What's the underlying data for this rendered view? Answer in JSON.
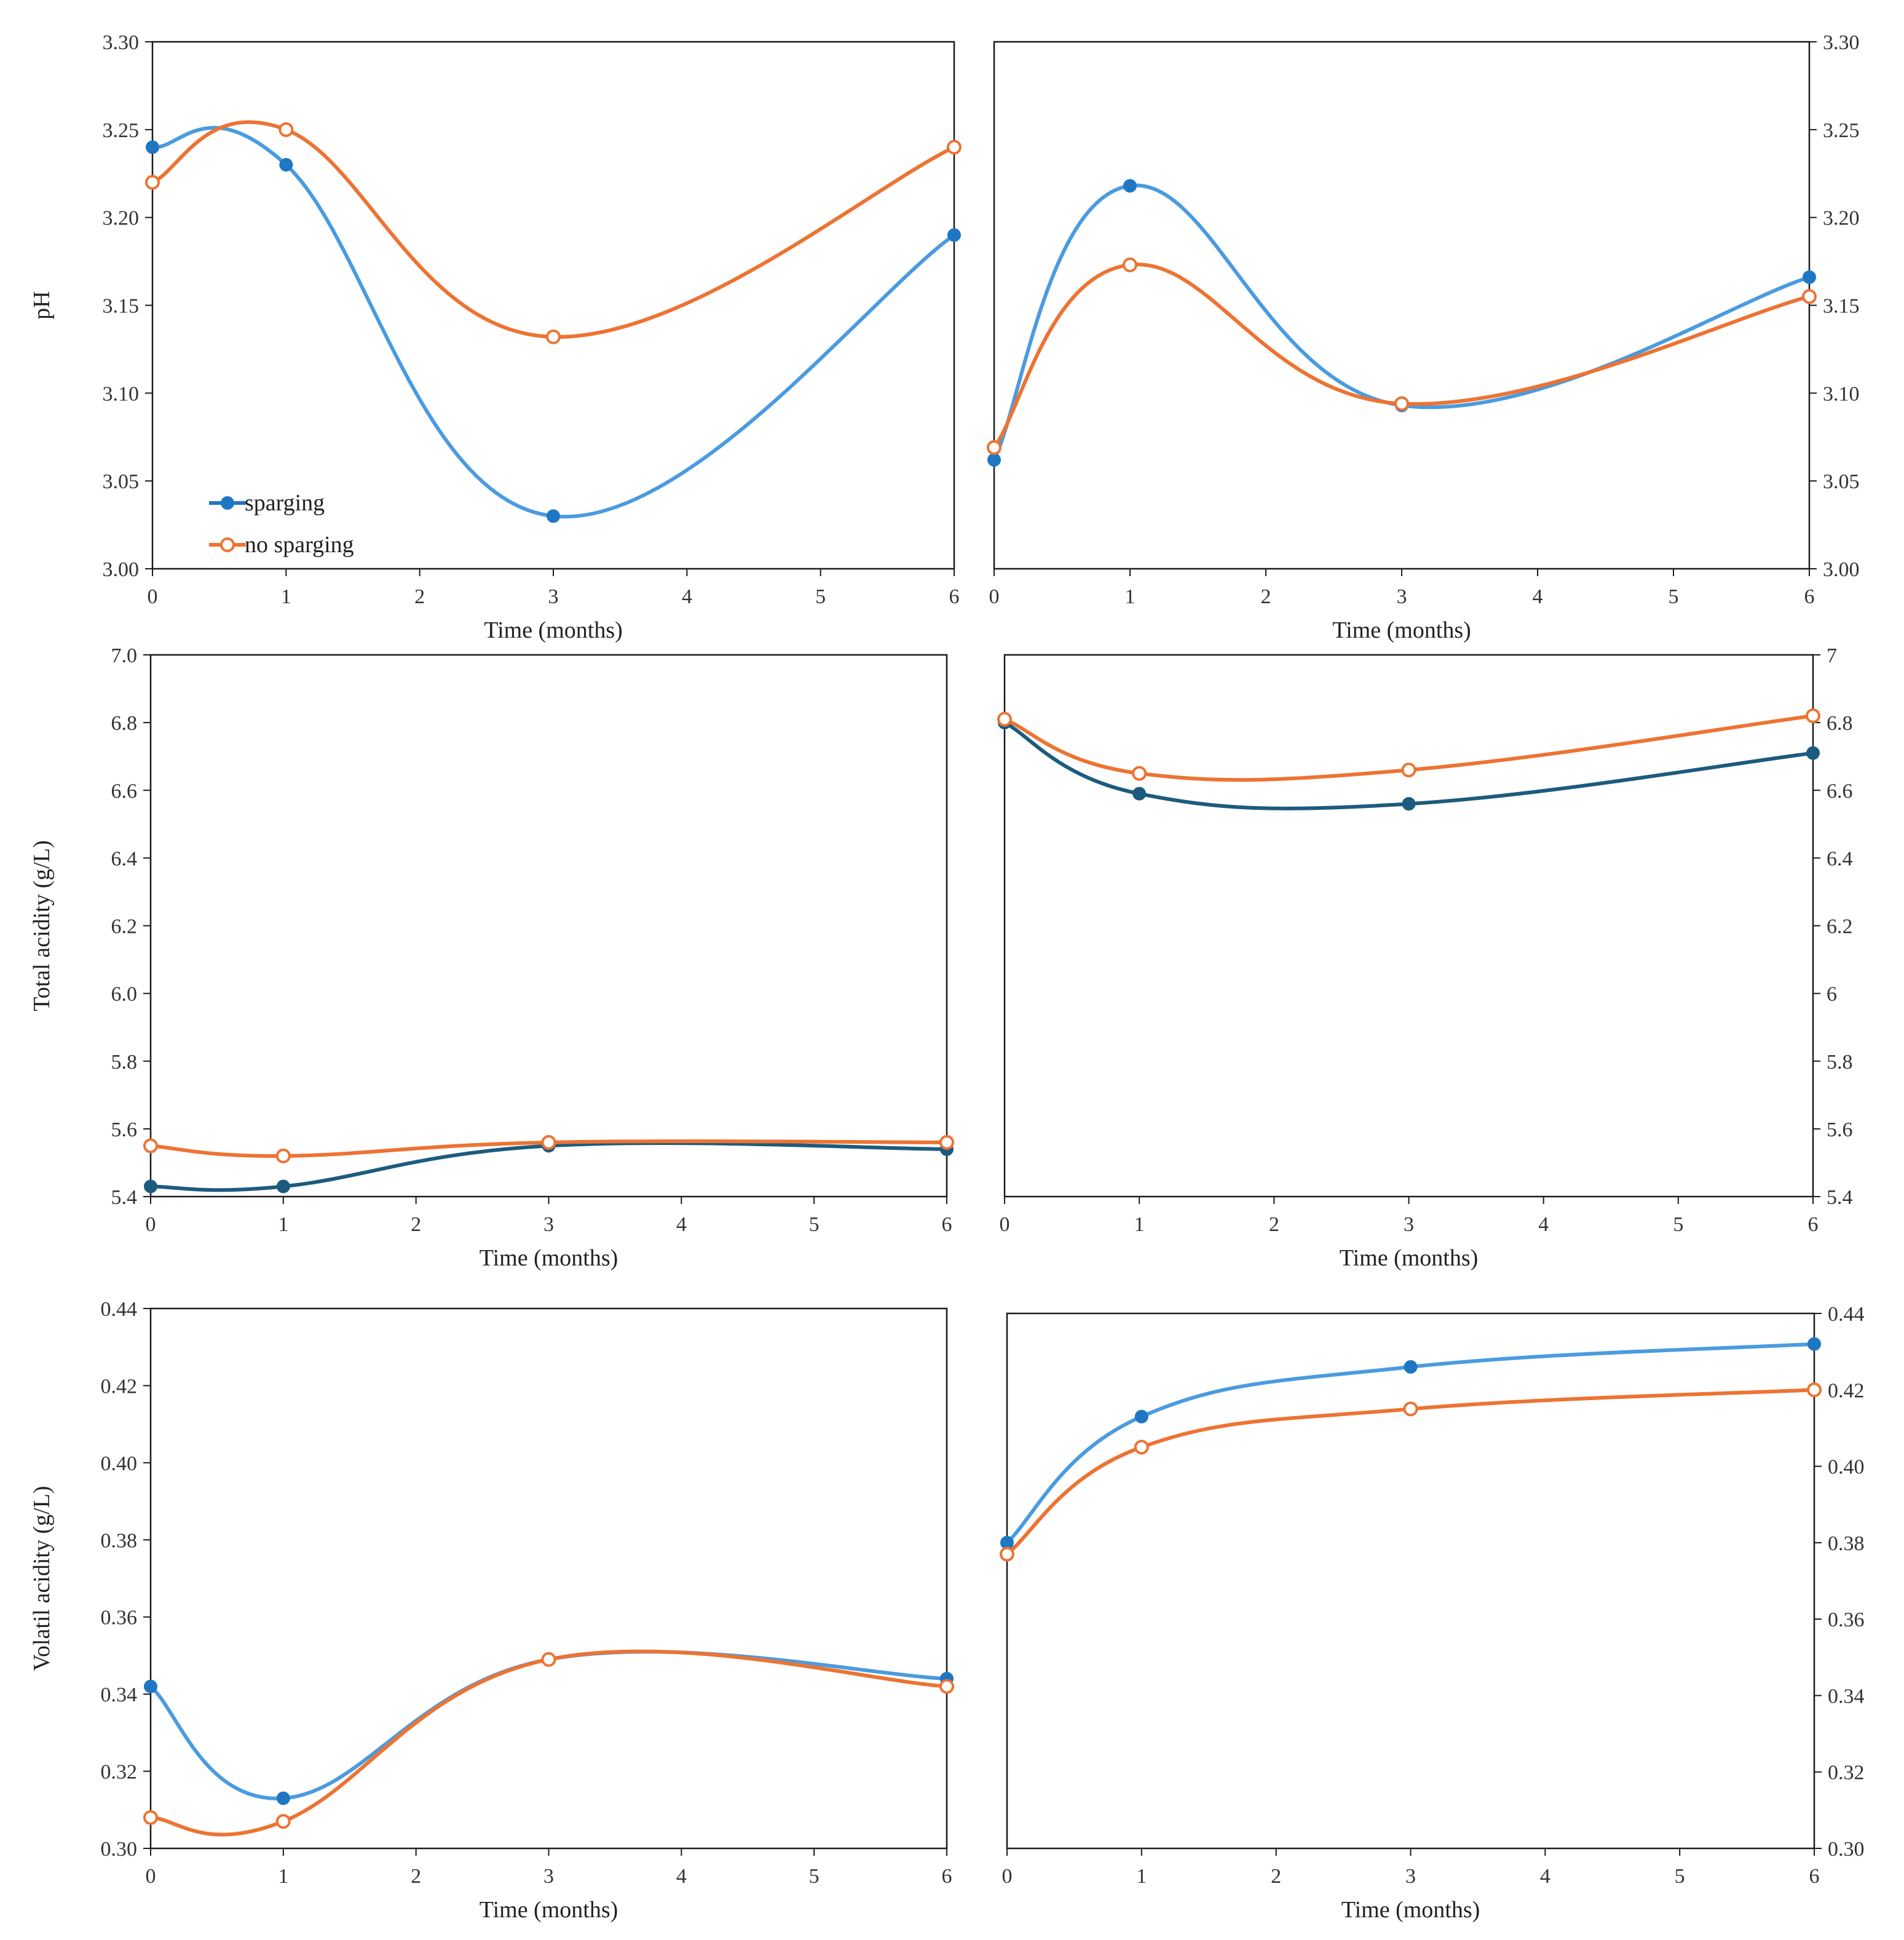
{
  "figure": {
    "legend": [
      {
        "label": "sparging",
        "color": "#1f77c4",
        "marker": "filled-circle"
      },
      {
        "label": "no sparging",
        "color": "#ed7332",
        "marker": "open-circle"
      }
    ]
  },
  "chart_data": [
    {
      "id": "ph-left",
      "type": "line",
      "smooth": true,
      "xlabel": "Time (months)",
      "ylabel": "pH",
      "xlim": [
        0,
        6
      ],
      "xticks": [
        "0",
        "1",
        "2",
        "3",
        "4",
        "5",
        "6"
      ],
      "ylim": [
        3.0,
        3.3
      ],
      "yticks": [
        "3.00",
        "3.05",
        "3.10",
        "3.15",
        "3.20",
        "3.25",
        "3.30"
      ],
      "y_axis_side": "left",
      "legend": {
        "position": "bottom-left",
        "entries": [
          "sparging",
          "no sparging"
        ]
      },
      "series": [
        {
          "name": "sparging",
          "color": "#1f77c4",
          "line_color": "#4a9be0",
          "x": [
            0,
            1,
            3,
            6
          ],
          "y": [
            3.24,
            3.23,
            3.03,
            3.19
          ]
        },
        {
          "name": "no sparging",
          "color": "#ed7332",
          "line_color": "#ed7332",
          "x": [
            0,
            1,
            3,
            6
          ],
          "y": [
            3.22,
            3.25,
            3.132,
            3.24
          ]
        }
      ]
    },
    {
      "id": "ph-right",
      "type": "line",
      "smooth": true,
      "xlabel": "Time (months)",
      "ylabel": "",
      "xlim": [
        0,
        6
      ],
      "xticks": [
        "0",
        "1",
        "2",
        "3",
        "4",
        "5",
        "6"
      ],
      "ylim": [
        3.0,
        3.3
      ],
      "yticks": [
        "3.00",
        "3.05",
        "3.10",
        "3.15",
        "3.20",
        "3.25",
        "3.30"
      ],
      "y_axis_side": "right",
      "series": [
        {
          "name": "sparging",
          "color": "#1f77c4",
          "line_color": "#4a9be0",
          "x": [
            0,
            1,
            3,
            6
          ],
          "y": [
            3.062,
            3.218,
            3.093,
            3.166
          ]
        },
        {
          "name": "no sparging",
          "color": "#ed7332",
          "line_color": "#ed7332",
          "x": [
            0,
            1,
            3,
            6
          ],
          "y": [
            3.069,
            3.173,
            3.094,
            3.155
          ]
        }
      ]
    },
    {
      "id": "ta-left",
      "type": "line",
      "smooth": true,
      "xlabel": "Time (months)",
      "ylabel": "Total acidity (g/L)",
      "xlim": [
        0,
        6
      ],
      "xticks": [
        "0",
        "1",
        "2",
        "3",
        "4",
        "5",
        "6"
      ],
      "ylim": [
        5.4,
        7.0
      ],
      "yticks": [
        "5.4",
        "5.6",
        "5.8",
        "6.0",
        "6.2",
        "6.4",
        "6.6",
        "6.8",
        "7.0"
      ],
      "y_axis_side": "left",
      "series": [
        {
          "name": "sparging",
          "color": "#1c5b7e",
          "line_color": "#1c5b7e",
          "x": [
            0,
            1,
            3,
            6
          ],
          "y": [
            5.43,
            5.43,
            5.55,
            5.54
          ]
        },
        {
          "name": "no sparging",
          "color": "#ed7332",
          "line_color": "#ed7332",
          "x": [
            0,
            1,
            3,
            6
          ],
          "y": [
            5.55,
            5.52,
            5.56,
            5.56
          ]
        }
      ]
    },
    {
      "id": "ta-right",
      "type": "line",
      "smooth": true,
      "xlabel": "Time (months)",
      "ylabel": "",
      "xlim": [
        0,
        6
      ],
      "xticks": [
        "0",
        "1",
        "2",
        "3",
        "4",
        "5",
        "6"
      ],
      "ylim": [
        5.4,
        7.0
      ],
      "yticks": [
        "5.4",
        "5.6",
        "5.8",
        "6",
        "6.2",
        "6.4",
        "6.6",
        "6.8",
        "7"
      ],
      "y_axis_side": "right",
      "series": [
        {
          "name": "sparging",
          "color": "#1c5b7e",
          "line_color": "#1c5b7e",
          "x": [
            0,
            1,
            3,
            6
          ],
          "y": [
            6.8,
            6.59,
            6.56,
            6.71
          ]
        },
        {
          "name": "no sparging",
          "color": "#ed7332",
          "line_color": "#ed7332",
          "x": [
            0,
            1,
            3,
            6
          ],
          "y": [
            6.81,
            6.65,
            6.66,
            6.82
          ]
        }
      ]
    },
    {
      "id": "va-left",
      "type": "line",
      "smooth": true,
      "xlabel": "Time (months)",
      "ylabel": "Volatil acidity (g/L)",
      "xlim": [
        0,
        6
      ],
      "xticks": [
        "0",
        "1",
        "2",
        "3",
        "4",
        "5",
        "6"
      ],
      "ylim": [
        0.3,
        0.44
      ],
      "yticks": [
        "0.30",
        "0.32",
        "0.34",
        "0.36",
        "0.38",
        "0.40",
        "0.42",
        "0.44"
      ],
      "y_axis_side": "left",
      "series": [
        {
          "name": "sparging",
          "color": "#1f77c4",
          "line_color": "#4a9be0",
          "x": [
            0,
            1,
            3,
            6
          ],
          "y": [
            0.342,
            0.313,
            0.349,
            0.344
          ]
        },
        {
          "name": "no sparging",
          "color": "#ed7332",
          "line_color": "#ed7332",
          "x": [
            0,
            1,
            3,
            6
          ],
          "y": [
            0.308,
            0.307,
            0.349,
            0.342
          ]
        }
      ]
    },
    {
      "id": "va-right",
      "type": "line",
      "smooth": true,
      "xlabel": "Time (months)",
      "ylabel": "",
      "xlim": [
        0,
        6
      ],
      "xticks": [
        "0",
        "1",
        "2",
        "3",
        "4",
        "5",
        "6"
      ],
      "ylim": [
        0.3,
        0.44
      ],
      "yticks": [
        "0.30",
        "0.32",
        "0.34",
        "0.36",
        "0.38",
        "0.40",
        "0.42",
        "0.44"
      ],
      "y_axis_side": "right",
      "series": [
        {
          "name": "sparging",
          "color": "#1f77c4",
          "line_color": "#4a9be0",
          "x": [
            0,
            1,
            3,
            6
          ],
          "y": [
            0.38,
            0.413,
            0.426,
            0.432
          ]
        },
        {
          "name": "no sparging",
          "color": "#ed7332",
          "line_color": "#ed7332",
          "x": [
            0,
            1,
            3,
            6
          ],
          "y": [
            0.377,
            0.405,
            0.415,
            0.42
          ]
        }
      ]
    }
  ]
}
